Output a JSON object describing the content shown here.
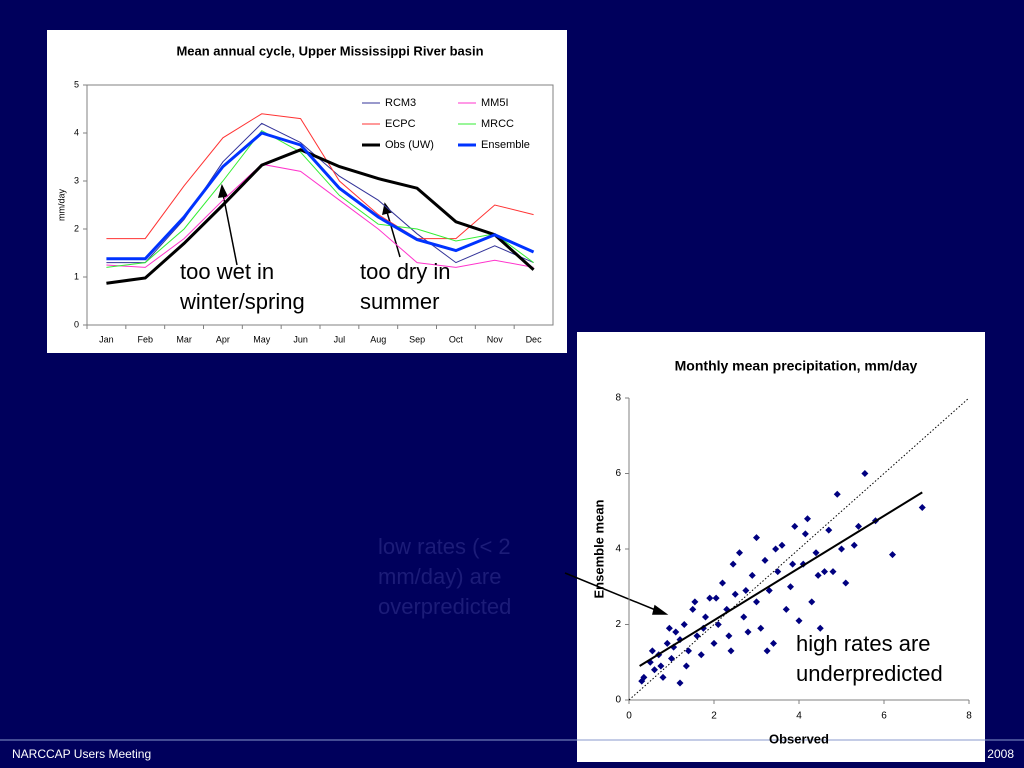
{
  "chart_data": [
    {
      "type": "line",
      "title": "Mean annual cycle, Upper Mississippi River basin",
      "ylabel": "mm/day",
      "categories": [
        "Jan",
        "Feb",
        "Mar",
        "Apr",
        "May",
        "Jun",
        "Jul",
        "Aug",
        "Sep",
        "Oct",
        "Nov",
        "Dec"
      ],
      "ylim": [
        0,
        5
      ],
      "yticks": [
        0,
        1,
        2,
        3,
        4,
        5
      ],
      "series": [
        {
          "name": "RCM3",
          "color": "#333399",
          "width": 1,
          "values": [
            1.3,
            1.3,
            2.2,
            3.4,
            4.2,
            3.8,
            3.1,
            2.6,
            1.9,
            1.3,
            1.65,
            1.3
          ]
        },
        {
          "name": "MM5I",
          "color": "#ff33cc",
          "width": 1,
          "values": [
            1.25,
            1.2,
            1.8,
            2.6,
            3.35,
            3.2,
            2.6,
            2.0,
            1.3,
            1.2,
            1.35,
            1.2
          ]
        },
        {
          "name": "ECPC",
          "color": "#ff3333",
          "width": 1,
          "values": [
            1.8,
            1.8,
            2.9,
            3.9,
            4.4,
            4.3,
            3.0,
            2.3,
            1.8,
            1.8,
            2.5,
            2.3
          ]
        },
        {
          "name": "MRCC",
          "color": "#33ee33",
          "width": 1,
          "values": [
            1.2,
            1.3,
            2.0,
            3.0,
            4.05,
            3.6,
            2.7,
            2.1,
            2.0,
            1.75,
            1.9,
            1.3
          ]
        },
        {
          "name": "Obs (UW)",
          "color": "#000000",
          "width": 3,
          "values": [
            0.87,
            0.98,
            1.7,
            2.5,
            3.33,
            3.65,
            3.3,
            3.05,
            2.85,
            2.15,
            1.88,
            1.15
          ]
        },
        {
          "name": "Ensemble",
          "color": "#0033ff",
          "width": 3,
          "values": [
            1.38,
            1.38,
            2.25,
            3.3,
            4.0,
            3.75,
            2.85,
            2.25,
            1.78,
            1.55,
            1.88,
            1.52
          ]
        }
      ],
      "annotations": [
        [
          "too wet in",
          "winter/spring"
        ],
        [
          "too dry in",
          "summer"
        ]
      ]
    },
    {
      "type": "scatter",
      "title": "Monthly mean precipitation, mm/day",
      "xlabel": "Observed",
      "ylabel": "Ensemble mean",
      "xlim": [
        0,
        8
      ],
      "xticks": [
        0,
        2,
        4,
        6,
        8
      ],
      "ylim": [
        0,
        8
      ],
      "yticks": [
        0,
        2,
        4,
        6,
        8
      ],
      "identity_line": true,
      "fit": {
        "x": [
          0.25,
          6.9
        ],
        "y": [
          0.9,
          5.5
        ]
      },
      "series": [
        {
          "color": "#000080",
          "x": [
            0.3,
            0.35,
            0.5,
            0.6,
            0.7,
            0.8,
            0.9,
            1.0,
            1.1,
            1.2,
            1.2,
            1.3,
            1.4,
            1.5,
            1.6,
            1.7,
            1.8,
            1.9,
            2.0,
            2.1,
            2.2,
            2.3,
            2.4,
            2.5,
            2.6,
            2.7,
            2.8,
            2.9,
            3.0,
            3.0,
            3.1,
            3.2,
            3.3,
            3.4,
            3.5,
            3.6,
            3.7,
            3.8,
            3.9,
            4.0,
            4.1,
            4.2,
            4.3,
            4.4,
            4.5,
            4.6,
            4.7,
            4.9,
            5.0,
            5.1,
            5.3,
            5.4,
            5.55,
            5.8,
            6.2,
            6.9,
            0.55,
            0.75,
            0.95,
            1.05,
            1.35,
            1.55,
            1.75,
            2.05,
            2.35,
            2.45,
            2.75,
            3.25,
            3.45,
            3.85,
            4.15,
            4.45,
            4.8
          ],
          "y": [
            0.5,
            0.6,
            1.0,
            0.8,
            1.2,
            0.6,
            1.5,
            1.1,
            1.8,
            0.45,
            1.6,
            2.0,
            1.3,
            2.4,
            1.7,
            1.2,
            2.2,
            2.7,
            1.5,
            2.0,
            3.1,
            2.4,
            1.3,
            2.8,
            3.9,
            2.2,
            1.8,
            3.3,
            4.3,
            2.6,
            1.9,
            3.7,
            2.9,
            1.5,
            3.4,
            4.1,
            2.4,
            3.0,
            4.6,
            2.1,
            3.6,
            4.8,
            2.6,
            3.9,
            1.9,
            3.4,
            4.5,
            5.45,
            4.0,
            3.1,
            4.1,
            4.6,
            6.0,
            4.75,
            3.85,
            5.1,
            1.3,
            0.9,
            1.9,
            1.4,
            0.9,
            2.6,
            1.9,
            2.7,
            1.7,
            3.6,
            2.9,
            1.3,
            4.0,
            3.6,
            4.4,
            3.3,
            3.4
          ]
        }
      ],
      "annotations": [
        [
          "high rates are",
          "underpredicted"
        ]
      ]
    }
  ],
  "slide": {
    "annotation": [
      "low rates (< 2",
      "mm/day) are",
      "overpredicted"
    ],
    "footer": "NARCCAP Users Meeting",
    "date": "2008"
  }
}
